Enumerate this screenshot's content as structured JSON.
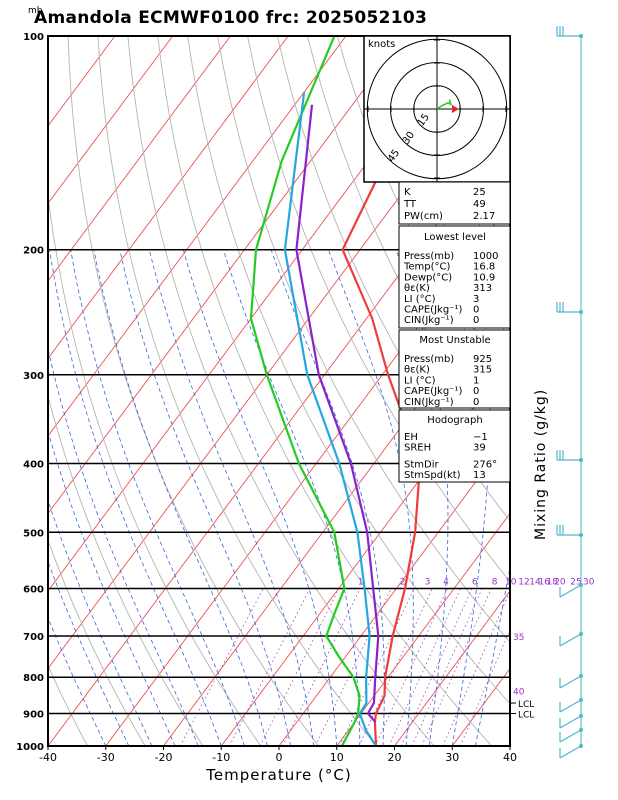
{
  "title": "Amandola ECMWF0100  frc: 2025052103",
  "pressure_unit": "mb",
  "mixing_ratio_axis_label": "Mixing Ratio (g/kg)",
  "hodograph": {
    "unit_label": "knots",
    "ring_labels": [
      "15",
      "30",
      "45"
    ]
  },
  "indices": {
    "k_label": "K",
    "k_value": "25",
    "tt_label": "TT",
    "tt_value": "49",
    "pw_label": "PW(cm)",
    "pw_value": "2.17"
  },
  "lowest_level": {
    "heading": "Lowest level",
    "rows": [
      {
        "label": "Press(mb)",
        "value": "1000"
      },
      {
        "label": "Temp(°C)",
        "value": "16.8"
      },
      {
        "label": "Dewp(°C)",
        "value": "10.9"
      },
      {
        "label": "θε(K)",
        "value": "313"
      },
      {
        "label": "LI (°C)",
        "value": "3"
      },
      {
        "label": "CAPE(Jkg⁻¹)",
        "value": "0"
      },
      {
        "label": "CIN(Jkg⁻¹)",
        "value": "0"
      }
    ]
  },
  "most_unstable": {
    "heading": "Most Unstable",
    "rows": [
      {
        "label": "Press(mb)",
        "value": "925"
      },
      {
        "label": "θε(K)",
        "value": "315"
      },
      {
        "label": "LI (°C)",
        "value": "1"
      },
      {
        "label": "CAPE(Jkg⁻¹)",
        "value": "0"
      },
      {
        "label": "CIN(Jkg⁻¹)",
        "value": "0"
      }
    ]
  },
  "hodograph_box": {
    "heading": "Hodograph",
    "rows": [
      {
        "label": "EH",
        "value": "−1"
      },
      {
        "label": "SREH",
        "value": "39"
      },
      {
        "label": "StmDir",
        "value": "276°"
      },
      {
        "label": "StmSpd(kt)",
        "value": "13"
      }
    ]
  },
  "chart_data": {
    "type": "line",
    "title": "Amandola ECMWF0100  frc: 2025052103",
    "xlabel": "Temperature (°C)",
    "ylabel": "",
    "xlim": [
      -40,
      40
    ],
    "ylim": [
      1000,
      100
    ],
    "y_scale": "log",
    "x_ticks": [
      -40,
      -30,
      -20,
      -10,
      0,
      10,
      20,
      30,
      40
    ],
    "y_ticks": [
      1000,
      900,
      800,
      700,
      600,
      500,
      400,
      300,
      200,
      100
    ],
    "mixing_ratio_labels": [
      {
        "value": "1",
        "t": -5.5
      },
      {
        "value": "2",
        "t": 1.8
      },
      {
        "value": "3",
        "t": 6.1
      },
      {
        "value": "4",
        "t": 9.3
      },
      {
        "value": "6",
        "t": 14.3
      },
      {
        "value": "8",
        "t": 17.7
      },
      {
        "value": "10",
        "t": 20.5
      },
      {
        "value": "12",
        "t": 22.8
      },
      {
        "value": "14",
        "t": 24.7
      },
      {
        "value": "16",
        "t": 26.3
      },
      {
        "value": "18",
        "t": 27.7
      },
      {
        "value": "20",
        "t": 29.0
      },
      {
        "value": "25",
        "t": 31.8
      },
      {
        "value": "30",
        "t": 34.0
      }
    ],
    "isotherm_end_labels": [
      {
        "value": "35",
        "p": 700
      },
      {
        "value": "40",
        "p": 835
      }
    ],
    "lcl_label": "LCL",
    "lcl_pressures": [
      870,
      900
    ],
    "series": [
      {
        "key": "temperature",
        "color": "#ee3b3b",
        "p": [
          1000,
          925,
          900,
          850,
          800,
          700,
          600,
          500,
          400,
          300,
          250,
          200,
          150,
          100
        ],
        "t": [
          16.8,
          13.5,
          12.6,
          11.8,
          9.5,
          5.5,
          1.5,
          -4.0,
          -12.0,
          -29.0,
          -39.0,
          -53.0,
          -57.0,
          -67.0
        ]
      },
      {
        "key": "dewpoint",
        "color": "#22cc22",
        "p": [
          1000,
          925,
          900,
          850,
          800,
          750,
          700,
          650,
          600,
          500,
          400,
          300,
          250,
          200,
          150,
          100
        ],
        "t": [
          10.9,
          10.0,
          9.5,
          7.5,
          4.0,
          -1.0,
          -6.0,
          -7.5,
          -9.0,
          -18.0,
          -33.0,
          -50.0,
          -60.0,
          -68.0,
          -75.0,
          -82.0
        ]
      },
      {
        "key": "parcel",
        "color": "#22a8dd",
        "p": [
          1000,
          950,
          900,
          870,
          800,
          700,
          600,
          500,
          400,
          300,
          200,
          120
        ],
        "t": [
          16.8,
          13.0,
          9.8,
          9.6,
          6.2,
          1.5,
          -5.5,
          -14.0,
          -26.0,
          -43.0,
          -63.0,
          -80.0
        ]
      },
      {
        "key": "virtual-parcel",
        "color": "#8a22cc",
        "p": [
          925,
          900,
          870,
          800,
          700,
          600,
          500,
          400,
          300,
          200,
          125
        ],
        "t": [
          13.6,
          11.2,
          10.9,
          7.8,
          3.0,
          -4.0,
          -12.3,
          -24.0,
          -41.0,
          -61.0,
          -77.0
        ]
      }
    ],
    "hodograph_trace": [
      {
        "u": 0,
        "v": 0
      },
      {
        "u": 3,
        "v": 2
      },
      {
        "u": 7,
        "v": 4
      },
      {
        "u": 9,
        "v": 3
      },
      {
        "u": 8,
        "v": 6
      }
    ],
    "storm_motion": {
      "dir_deg": 276,
      "speed_kt": 13
    }
  }
}
